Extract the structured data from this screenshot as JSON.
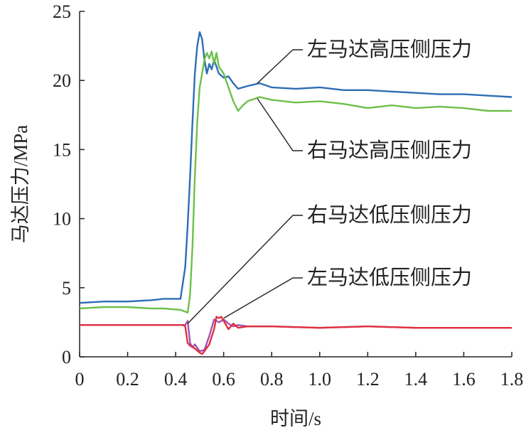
{
  "chart_data": {
    "type": "line",
    "xlabel": "时间/s",
    "ylabel": "马达压力/MPa",
    "xlim": [
      0,
      1.8
    ],
    "ylim": [
      0,
      25
    ],
    "xticks": [
      "0",
      "0.2",
      "0.4",
      "0.6",
      "0.8",
      "1.0",
      "1.2",
      "1.4",
      "1.6",
      "1.8"
    ],
    "yticks": [
      "0",
      "5",
      "10",
      "15",
      "20",
      "25"
    ],
    "grid": false,
    "legend": "none (direct annotations)",
    "series": [
      {
        "name": "左马达高压侧压力",
        "color": "#2E6DB5",
        "x": [
          0,
          0.1,
          0.2,
          0.3,
          0.35,
          0.42,
          0.44,
          0.45,
          0.46,
          0.47,
          0.48,
          0.49,
          0.5,
          0.51,
          0.52,
          0.53,
          0.54,
          0.55,
          0.56,
          0.58,
          0.6,
          0.62,
          0.64,
          0.66,
          0.7,
          0.75,
          0.8,
          0.9,
          1.0,
          1.1,
          1.2,
          1.3,
          1.4,
          1.5,
          1.6,
          1.7,
          1.8
        ],
        "values": [
          3.9,
          4.0,
          4.0,
          4.1,
          4.2,
          4.2,
          6.5,
          9.5,
          13,
          17,
          20.5,
          22.5,
          23.5,
          23.0,
          21.5,
          20.5,
          21.2,
          20.8,
          21.5,
          20.5,
          20.2,
          20.3,
          19.8,
          19.4,
          19.6,
          19.8,
          19.5,
          19.4,
          19.5,
          19.3,
          19.3,
          19.2,
          19.1,
          19.0,
          19.0,
          18.9,
          18.8
        ]
      },
      {
        "name": "右马达高压侧压力",
        "color": "#6DC04A",
        "x": [
          0,
          0.1,
          0.2,
          0.3,
          0.35,
          0.42,
          0.45,
          0.46,
          0.47,
          0.48,
          0.49,
          0.5,
          0.51,
          0.52,
          0.53,
          0.54,
          0.55,
          0.56,
          0.57,
          0.58,
          0.6,
          0.62,
          0.64,
          0.66,
          0.68,
          0.7,
          0.75,
          0.8,
          0.9,
          1.0,
          1.1,
          1.2,
          1.3,
          1.4,
          1.5,
          1.6,
          1.7,
          1.8
        ],
        "values": [
          3.5,
          3.6,
          3.6,
          3.5,
          3.5,
          3.4,
          3.2,
          4.5,
          8,
          13,
          17,
          19.5,
          20.5,
          21.5,
          22.0,
          21.6,
          22.1,
          21.2,
          22.0,
          21.0,
          20.5,
          19.5,
          18.5,
          17.8,
          18.2,
          18.5,
          18.8,
          18.6,
          18.4,
          18.5,
          18.3,
          18.0,
          18.2,
          18.0,
          18.1,
          18.0,
          17.8,
          17.8
        ]
      },
      {
        "name": "右马达低压侧压力",
        "color": "#A450B0",
        "x": [
          0,
          0.1,
          0.2,
          0.3,
          0.4,
          0.43,
          0.44,
          0.45,
          0.46,
          0.47,
          0.48,
          0.5,
          0.52,
          0.54,
          0.56,
          0.58,
          0.6,
          0.62,
          0.64,
          0.66,
          0.7,
          0.8,
          1.0,
          1.2,
          1.4,
          1.6,
          1.8
        ],
        "values": [
          2.3,
          2.3,
          2.3,
          2.3,
          2.3,
          2.3,
          2.3,
          2.6,
          1.0,
          0.7,
          0.9,
          0.4,
          0.5,
          1.5,
          2.7,
          2.5,
          2.7,
          2.4,
          2.2,
          2.3,
          2.2,
          2.2,
          2.1,
          2.2,
          2.1,
          2.1,
          2.1
        ]
      },
      {
        "name": "左马达低压侧压力",
        "color": "#E03040",
        "x": [
          0,
          0.1,
          0.2,
          0.3,
          0.4,
          0.43,
          0.44,
          0.45,
          0.46,
          0.47,
          0.48,
          0.5,
          0.51,
          0.52,
          0.54,
          0.56,
          0.57,
          0.58,
          0.59,
          0.6,
          0.62,
          0.64,
          0.66,
          0.7,
          0.8,
          1.0,
          1.2,
          1.4,
          1.6,
          1.8
        ],
        "values": [
          2.3,
          2.3,
          2.3,
          2.3,
          2.3,
          2.3,
          2.2,
          1.0,
          0.8,
          0.7,
          0.6,
          0.3,
          0.2,
          0.4,
          0.9,
          2.0,
          2.9,
          2.8,
          2.9,
          2.6,
          2.0,
          2.4,
          2.1,
          2.2,
          2.2,
          2.1,
          2.2,
          2.1,
          2.1,
          2.1
        ]
      }
    ],
    "annotations": [
      {
        "text": "左马达高压侧压力",
        "series": "左马达高压侧压力",
        "at_x": 0.74,
        "at_y": 19.8
      },
      {
        "text": "右马达高压侧压力",
        "series": "右马达高压侧压力",
        "at_x": 0.74,
        "at_y": 18.7
      },
      {
        "text": "右马达低压侧压力",
        "series": "右马达低压侧压力",
        "at_x": 0.45,
        "at_y": 2.4
      },
      {
        "text": "左马达低压侧压力",
        "series": "左马达低压侧压力",
        "at_x": 0.6,
        "at_y": 2.8
      }
    ]
  }
}
